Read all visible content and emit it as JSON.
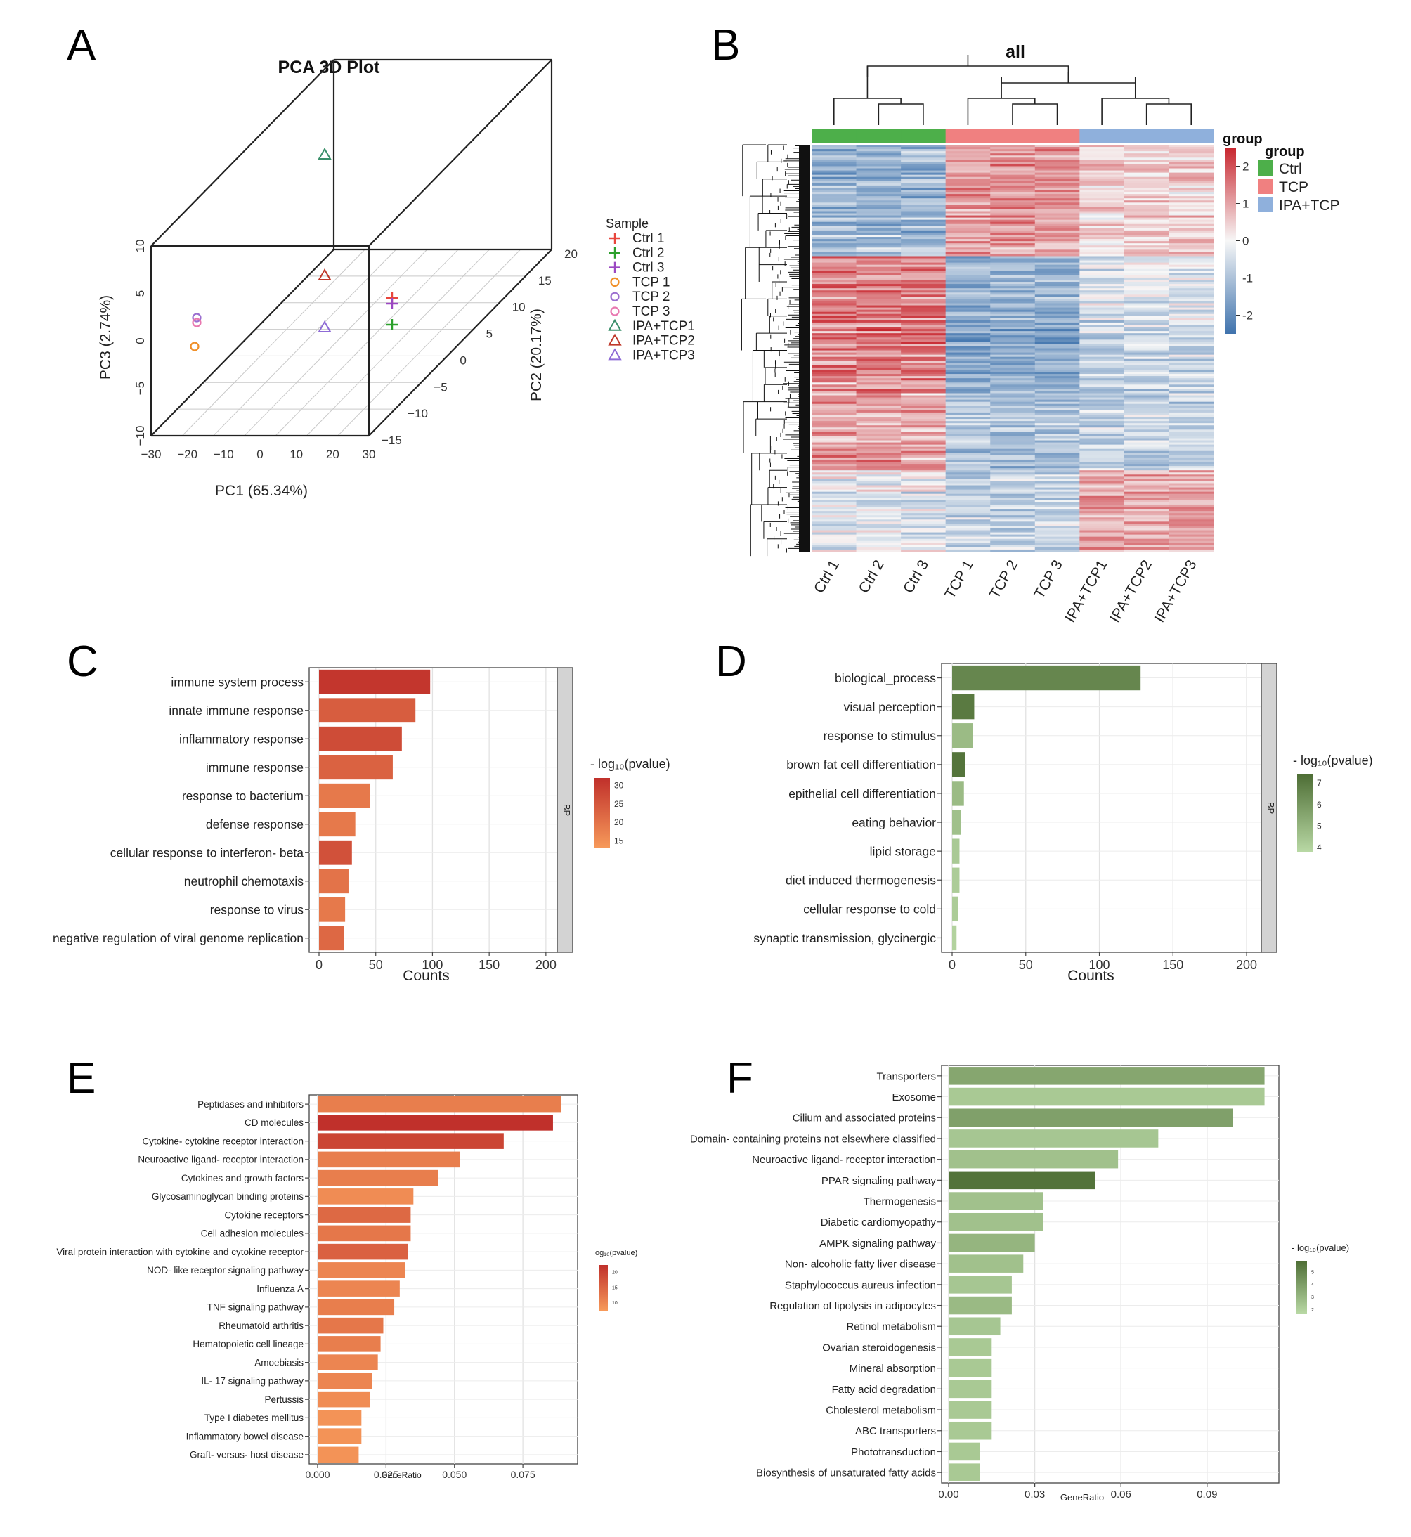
{
  "panels": {
    "A": "A",
    "B": "B",
    "C": "C",
    "D": "D",
    "E": "E",
    "F": "F"
  },
  "colors": {
    "ctrl": "#4daf4a",
    "tcp": "#f08080",
    "ipa": "#8fb0dc",
    "s1": "#e8463c",
    "s2": "#2ca02c",
    "s3": "#9b47c2",
    "s4": "#f0902a",
    "s5": "#9b6fd0",
    "s6": "#e878b0",
    "s7": "#3a8f6a",
    "s8": "#c0392b",
    "s9": "#8e6bd6",
    "redHi": "#c0302b",
    "redLo": "#f79a5a",
    "greenHi": "#4e6e35",
    "greenLo": "#b8d8a4",
    "heatHi": "#c8262e",
    "heatMid": "#f7f7f7",
    "heatLo": "#3f73ad"
  },
  "chart_data": [
    {
      "id": "A",
      "type": "scatter",
      "title": "PCA 3D Plot",
      "xlabel": "PC1 (65.34%)",
      "ylabel": "PC2 (20.17%)",
      "zlabel": "PC3 (2.74%)",
      "xlim": [
        -30,
        30
      ],
      "ylim": [
        -15,
        20
      ],
      "zlim": [
        -10,
        10
      ],
      "xticks": [
        "−30",
        "−20",
        "−10",
        "0",
        "10",
        "20",
        "30"
      ],
      "yticks": [
        "−15",
        "−10",
        "−5",
        "0",
        "5",
        "10",
        "15",
        "20"
      ],
      "zticks": [
        "−10",
        "−5",
        "0",
        "5",
        "10"
      ],
      "legend_title": "Sample",
      "samples": [
        {
          "name": "Ctrl 1",
          "pc1": 30,
          "pc2": -8,
          "pc3": 3.5,
          "marker": "+",
          "color_key": "s1"
        },
        {
          "name": "Ctrl 2",
          "pc1": 30,
          "pc2": -8,
          "pc3": 1.0,
          "marker": "+",
          "color_key": "s2"
        },
        {
          "name": "Ctrl 3",
          "pc1": 30,
          "pc2": -8,
          "pc3": 4.5,
          "marker": "+",
          "color_key": "s3"
        },
        {
          "name": "TCP 1",
          "pc1": -30,
          "pc2": -10,
          "pc3": -1,
          "marker": "o",
          "color_key": "s4"
        },
        {
          "name": "TCP 2",
          "pc1": -30,
          "pc2": -9,
          "pc3": 2.6,
          "marker": "o",
          "color_key": "s5"
        },
        {
          "name": "TCP 3",
          "pc1": -30,
          "pc2": -9,
          "pc3": 2.0,
          "marker": "o",
          "color_key": "s6"
        },
        {
          "name": "IPA+TCP1",
          "pc1": -5,
          "pc2": 20,
          "pc3": 10,
          "marker": "^",
          "color_key": "s7"
        },
        {
          "name": "IPA+TCP2",
          "pc1": -5,
          "pc2": 20,
          "pc3": 2,
          "marker": "^",
          "color_key": "s8"
        },
        {
          "name": "IPA+TCP3",
          "pc1": -5,
          "pc2": 20,
          "pc3": -4.5,
          "marker": "^",
          "color_key": "s9"
        }
      ]
    },
    {
      "id": "B",
      "type": "heatmap",
      "title": "all",
      "columns": [
        "Ctrl 1",
        "Ctrl 2",
        "Ctrl 3",
        "TCP 1",
        "TCP 2",
        "TCP 3",
        "IPA+TCP1",
        "IPA+TCP2",
        "IPA+TCP3"
      ],
      "groups": [
        "Ctrl",
        "Ctrl",
        "Ctrl",
        "TCP",
        "TCP",
        "TCP",
        "IPA+TCP",
        "IPA+TCP",
        "IPA+TCP"
      ],
      "group_title": "group",
      "group_legend": [
        "Ctrl",
        "TCP",
        "IPA+TCP"
      ],
      "scale_ticks": [
        "2",
        "1",
        "0",
        "-1",
        "-2"
      ],
      "scale_range": [
        -2.5,
        2.5
      ]
    },
    {
      "id": "C",
      "type": "bar",
      "xlabel": "Counts",
      "xlim": [
        0,
        210
      ],
      "xticks": [
        "0",
        "50",
        "100",
        "150",
        "200"
      ],
      "facet": "BP",
      "legend_title": "- log₁₀(pvalue)",
      "legend_ticks": [
        "30",
        "25",
        "20",
        "15"
      ],
      "color_range": [
        13,
        32
      ],
      "categories": [
        "immune system process",
        "innate immune response",
        "inflammatory response",
        "immune response",
        "response to bacterium",
        "defense response",
        "cellular response to interferon- beta",
        "neutrophil chemotaxis",
        "response to virus",
        "negative regulation of viral genome replication"
      ],
      "values": [
        98,
        85,
        73,
        65,
        45,
        32,
        29,
        26,
        23,
        22
      ],
      "pvalues": [
        31,
        24,
        27,
        23,
        19,
        19,
        26,
        20,
        19,
        22
      ]
    },
    {
      "id": "D",
      "type": "bar",
      "xlabel": "Counts",
      "xlim": [
        0,
        210
      ],
      "xticks": [
        "0",
        "50",
        "100",
        "150",
        "200"
      ],
      "facet": "BP",
      "legend_title": "- log₁₀(pvalue)",
      "legend_ticks": [
        "7",
        "6",
        "5",
        "4"
      ],
      "color_range": [
        3.8,
        7.4
      ],
      "categories": [
        "biological_process",
        "visual perception",
        "response to stimulus",
        "brown fat cell differentiation",
        "epithelial cell differentiation",
        "eating behavior",
        "lipid storage",
        "diet induced thermogenesis",
        "cellular response to cold",
        "synaptic transmission, glycinergic"
      ],
      "values": [
        128,
        15,
        14,
        9,
        8,
        6,
        5,
        5,
        4,
        3
      ],
      "pvalues": [
        6.6,
        7.0,
        4.8,
        7.2,
        4.8,
        4.6,
        4.3,
        4.2,
        4.2,
        4.0
      ]
    },
    {
      "id": "E",
      "type": "bar",
      "xlabel": "GeneRatio",
      "xlim": [
        0,
        0.095
      ],
      "xticks": [
        "0.000",
        "0.025",
        "0.050",
        "0.075"
      ],
      "legend_title": "og₁₀(pvalue)",
      "legend_ticks": [
        "20",
        "15",
        "10"
      ],
      "color_range": [
        7,
        22
      ],
      "categories": [
        "Peptidases and inhibitors",
        "CD molecules",
        "Cytokine- cytokine receptor interaction",
        "Neuroactive ligand- receptor interaction",
        "Cytokines and growth factors",
        "Glycosaminoglycan binding proteins",
        "Cytokine receptors",
        "Cell adhesion molecules",
        "Viral protein interaction with cytokine and cytokine receptor",
        "NOD- like receptor signaling pathway",
        "Influenza A",
        "TNF signaling pathway",
        "Rheumatoid arthritis",
        "Hematopoietic cell lineage",
        "Amoebiasis",
        "IL- 17 signaling pathway",
        "Pertussis",
        "Type I diabetes mellitus",
        "Inflammatory bowel disease",
        "Graft- versus- host disease"
      ],
      "values": [
        0.089,
        0.086,
        0.068,
        0.052,
        0.044,
        0.035,
        0.034,
        0.034,
        0.033,
        0.032,
        0.03,
        0.028,
        0.024,
        0.023,
        0.022,
        0.02,
        0.019,
        0.016,
        0.016,
        0.015
      ],
      "pvalues": [
        11,
        22,
        19,
        11,
        11,
        9,
        14,
        12,
        15,
        10,
        10,
        11,
        12,
        11,
        10,
        10,
        9,
        8,
        8,
        8
      ]
    },
    {
      "id": "F",
      "type": "bar",
      "xlabel": "GeneRatio",
      "xlim": [
        0,
        0.115
      ],
      "xticks": [
        "0.00",
        "0.03",
        "0.06",
        "0.09"
      ],
      "legend_title": "- log₁₀(pvalue)",
      "legend_ticks": [
        "5",
        "4",
        "3",
        "2"
      ],
      "color_range": [
        1.6,
        5.8
      ],
      "categories": [
        "Transporters",
        "Exosome",
        "Cilium and associated proteins",
        "Domain- containing proteins not elsewhere classified",
        "Neuroactive ligand- receptor interaction",
        "PPAR signaling pathway",
        "Thermogenesis",
        "Diabetic cardiomyopathy",
        "AMPK signaling pathway",
        "Non- alcoholic fatty liver disease",
        "Staphylococcus aureus infection",
        "Regulation of lipolysis in adipocytes",
        "Retinol metabolism",
        "Ovarian steroidogenesis",
        "Mineral absorption",
        "Fatty acid degradation",
        "Cholesterol metabolism",
        "ABC transporters",
        "Phototransduction",
        "Biosynthesis of unsaturated fatty acids"
      ],
      "values": [
        0.11,
        0.11,
        0.099,
        0.073,
        0.059,
        0.051,
        0.033,
        0.033,
        0.03,
        0.026,
        0.022,
        0.022,
        0.018,
        0.015,
        0.015,
        0.015,
        0.015,
        0.015,
        0.011,
        0.011
      ],
      "pvalues": [
        3.6,
        2.2,
        3.8,
        2.3,
        2.5,
        5.6,
        2.5,
        2.5,
        3.0,
        2.5,
        2.3,
        2.8,
        2.3,
        2.2,
        2.2,
        2.2,
        2.2,
        2.2,
        2.2,
        2.2
      ]
    }
  ]
}
